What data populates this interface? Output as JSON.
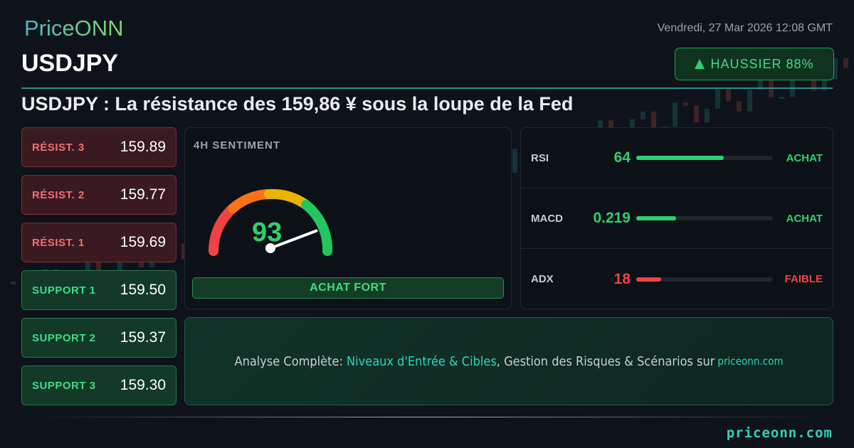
{
  "brand": {
    "logo": "PriceONN",
    "footer_site": "priceonn.com"
  },
  "date": "Vendredi, 27 Mar 2026 12:08 GMT",
  "pair": "USDJPY",
  "trend": {
    "label": "HAUSSIER 88%",
    "icon": "triangle-up-icon",
    "color": "#2ecf6e"
  },
  "headline": "USDJPY : La résistance des 159,86 ¥ sous la loupe de la Fed",
  "levels": [
    {
      "label": "RÉSIST. 3",
      "value": "159.89",
      "type": "resistance"
    },
    {
      "label": "RÉSIST. 2",
      "value": "159.77",
      "type": "resistance"
    },
    {
      "label": "RÉSIST. 1",
      "value": "159.69",
      "type": "resistance"
    },
    {
      "label": "SUPPORT 1",
      "value": "159.50",
      "type": "support"
    },
    {
      "label": "SUPPORT 2",
      "value": "159.37",
      "type": "support"
    },
    {
      "label": "SUPPORT 3",
      "value": "159.30",
      "type": "support"
    }
  ],
  "sentiment": {
    "title": "4H SENTIMENT",
    "score": "93",
    "score_value": 93,
    "verdict": "ACHAT FORT"
  },
  "indicators": [
    {
      "name": "RSI",
      "value": "64",
      "signal": "ACHAT",
      "fill_percent": 64,
      "color": "#2ecf6e"
    },
    {
      "name": "MACD",
      "value": "0.219",
      "signal": "ACHAT",
      "fill_percent": 29,
      "color": "#2ecf6e"
    },
    {
      "name": "ADX",
      "value": "18",
      "signal": "FAIBLE",
      "fill_percent": 18,
      "color": "#ef4444"
    }
  ],
  "cta": {
    "prefix": "Analyse Complète: ",
    "highlight": "Niveaux d'Entrée & Cibles",
    "middle": ", Gestion des Risques & Scénarios sur",
    "site": "priceonn.com"
  }
}
